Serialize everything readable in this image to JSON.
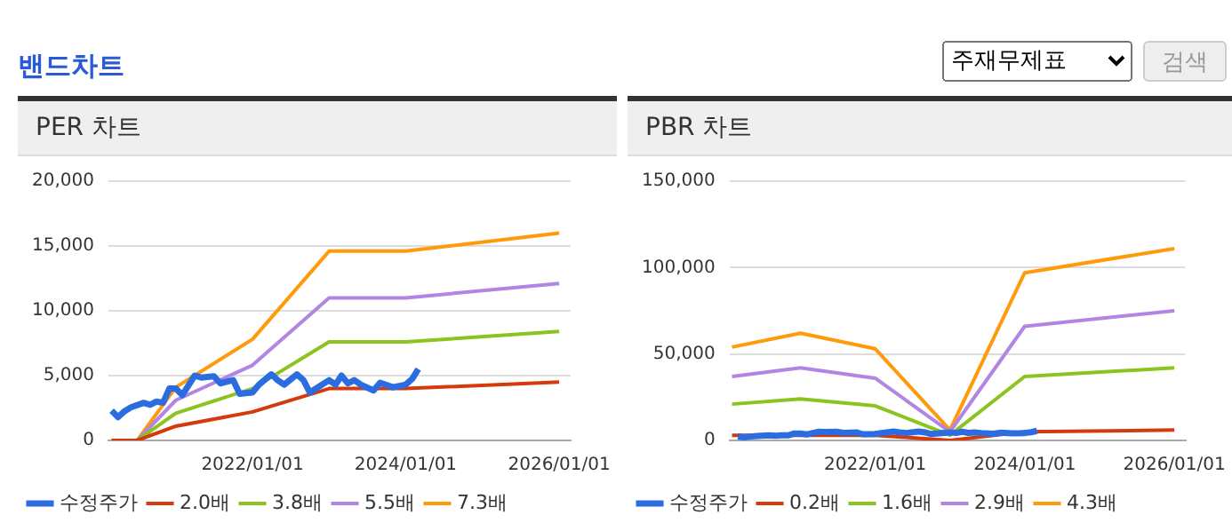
{
  "chart_data": [
    {
      "type": "other",
      "title": "밴드차트",
      "annotations": [
        "주재무제표",
        "검색"
      ]
    },
    {
      "type": "line",
      "title": "PER 차트",
      "grid": "y",
      "legend": "bottom",
      "marker": "none",
      "xlim": [
        "2020-02-15",
        "2026-02-24"
      ],
      "xticks": [
        {
          "value": "2022-01-01",
          "label": "2022/01/01"
        },
        {
          "value": "2024-01-01",
          "label": "2024/01/01"
        },
        {
          "value": "2026-01-01",
          "label": "2026/01/01"
        }
      ],
      "ylim": [
        0,
        20000
      ],
      "yticks": [
        {
          "value": 0,
          "label": "0"
        },
        {
          "value": 5000,
          "label": "5,000"
        },
        {
          "value": 10000,
          "label": "10,000"
        },
        {
          "value": 15000,
          "label": "15,000"
        },
        {
          "value": 20000,
          "label": "20,000"
        }
      ],
      "series": [
        {
          "name": "수정주가",
          "color": "#2b6de0",
          "x": [
            "2020-03",
            "2020-04",
            "2020-05",
            "2020-06",
            "2020-08",
            "2020-09",
            "2020-10",
            "2020-11",
            "2020-12",
            "2021-01",
            "2021-02",
            "2021-04",
            "2021-05",
            "2021-07",
            "2021-08",
            "2021-10",
            "2021-11",
            "2022-01",
            "2022-02",
            "2022-04",
            "2022-05",
            "2022-06",
            "2022-08",
            "2022-09",
            "2022-10",
            "2023-01",
            "2023-02",
            "2023-03",
            "2023-04",
            "2023-05",
            "2023-06",
            "2023-08",
            "2023-09",
            "2023-11",
            "2024-01",
            "2024-02",
            "2024-03"
          ],
          "values": [
            2300,
            1800,
            2250,
            2550,
            2900,
            2750,
            3000,
            2900,
            4000,
            4000,
            3500,
            5000,
            4850,
            4950,
            4400,
            4650,
            3600,
            3700,
            4300,
            5100,
            4650,
            4300,
            5100,
            4650,
            3700,
            4650,
            4300,
            5000,
            4400,
            4650,
            4300,
            3850,
            4450,
            4100,
            4300,
            4750,
            5500
          ]
        },
        {
          "name": "2.0배",
          "color": "#d33a0c",
          "x": [
            "2020-03",
            "2020-07",
            "2021-01",
            "2022-01",
            "2023-01",
            "2024-01",
            "2026-01"
          ],
          "values": [
            0,
            0,
            1100,
            2200,
            4000,
            4000,
            4500
          ]
        },
        {
          "name": "3.8배",
          "color": "#8cc41f",
          "x": [
            "2020-03",
            "2020-07",
            "2021-01",
            "2022-01",
            "2023-01",
            "2024-01",
            "2026-01"
          ],
          "values": [
            0,
            0,
            2100,
            4000,
            7600,
            7600,
            8400
          ]
        },
        {
          "name": "5.5배",
          "color": "#b285e3",
          "x": [
            "2020-03",
            "2020-07",
            "2021-01",
            "2022-01",
            "2023-01",
            "2024-01",
            "2026-01"
          ],
          "values": [
            0,
            0,
            3100,
            5800,
            11000,
            11000,
            12100
          ]
        },
        {
          "name": "7.3배",
          "color": "#ff9a0a",
          "x": [
            "2020-03",
            "2020-07",
            "2021-01",
            "2022-01",
            "2023-01",
            "2024-01",
            "2026-01"
          ],
          "values": [
            0,
            0,
            4100,
            7800,
            14600,
            14600,
            16000
          ]
        }
      ]
    },
    {
      "type": "line",
      "title": "PBR 차트",
      "grid": "y",
      "legend": "bottom",
      "marker": "none",
      "xlim": [
        "2020-01-20",
        "2026-02-24"
      ],
      "xticks": [
        {
          "value": "2022-01-01",
          "label": "2022/01/01"
        },
        {
          "value": "2024-01-01",
          "label": "2024/01/01"
        },
        {
          "value": "2026-01-01",
          "label": "2026/01/01"
        }
      ],
      "ylim": [
        0,
        150000
      ],
      "yticks": [
        {
          "value": 0,
          "label": "0"
        },
        {
          "value": 50000,
          "label": "50,000"
        },
        {
          "value": 100000,
          "label": "100,000"
        },
        {
          "value": 150000,
          "label": "150,000"
        }
      ],
      "series": [
        {
          "name": "수정주가",
          "color": "#2b6de0",
          "x": [
            "2020-03",
            "2020-04",
            "2020-05",
            "2020-06",
            "2020-08",
            "2020-09",
            "2020-10",
            "2020-11",
            "2020-12",
            "2021-01",
            "2021-02",
            "2021-04",
            "2021-05",
            "2021-07",
            "2021-08",
            "2021-10",
            "2021-11",
            "2022-01",
            "2022-02",
            "2022-04",
            "2022-05",
            "2022-06",
            "2022-08",
            "2022-09",
            "2022-10",
            "2023-01",
            "2023-02",
            "2023-03",
            "2023-04",
            "2023-05",
            "2023-06",
            "2023-08",
            "2023-09",
            "2023-11",
            "2024-01",
            "2024-02",
            "2024-03"
          ],
          "values": [
            2300,
            1800,
            2250,
            2550,
            2900,
            2750,
            3000,
            2900,
            4000,
            4000,
            3500,
            5000,
            4850,
            4950,
            4400,
            4650,
            3600,
            3700,
            4300,
            5100,
            4650,
            4300,
            5100,
            4650,
            3700,
            4650,
            4300,
            5000,
            4400,
            4650,
            4300,
            3850,
            4450,
            4100,
            4300,
            4750,
            5500
          ]
        },
        {
          "name": "0.2배",
          "color": "#d33a0c",
          "x": [
            "2020-02",
            "2021-01",
            "2022-01",
            "2023-01",
            "2024-01",
            "2026-01"
          ],
          "values": [
            3000,
            3000,
            3000,
            0,
            5000,
            6000
          ]
        },
        {
          "name": "1.6배",
          "color": "#8cc41f",
          "x": [
            "2020-02",
            "2021-01",
            "2022-01",
            "2023-01",
            "2024-01",
            "2026-01"
          ],
          "values": [
            21000,
            24000,
            20000,
            3000,
            37000,
            42000
          ]
        },
        {
          "name": "2.9배",
          "color": "#b285e3",
          "x": [
            "2020-02",
            "2021-01",
            "2022-01",
            "2023-01",
            "2024-01",
            "2026-01"
          ],
          "values": [
            37000,
            42000,
            36000,
            5000,
            66000,
            75000
          ]
        },
        {
          "name": "4.3배",
          "color": "#ff9a0a",
          "x": [
            "2020-02",
            "2021-01",
            "2022-01",
            "2023-01",
            "2024-01",
            "2026-01"
          ],
          "values": [
            54000,
            62000,
            53000,
            6000,
            97000,
            111000
          ]
        }
      ]
    }
  ]
}
